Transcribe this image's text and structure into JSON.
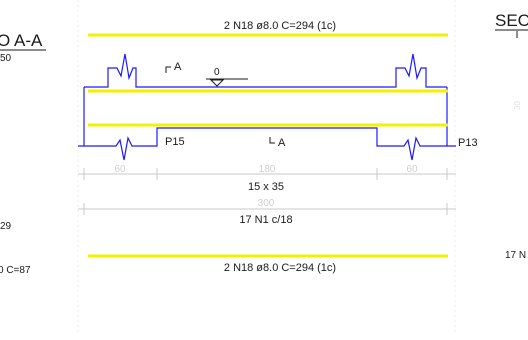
{
  "colors": {
    "rebar": "#f2f200",
    "outline": "#1a1aff",
    "dimension": "#c8c8c8",
    "text": "#1a1a1a",
    "faint_text": "#d0d0d0"
  },
  "drawing": {
    "top_bar_label": "2 N18 ø8.0 C=294 (1c)",
    "bottom_bar_label": "2 N18 ø8.0 C=294 (1c)",
    "section_mark_top": "A",
    "section_mark_bottom": "A",
    "level_mark": "0",
    "pillar_left": "P15",
    "pillar_right": "P13",
    "span_left": "60",
    "span_mid": "180",
    "span_right": "60",
    "section_size": "15 x 35",
    "total_length": "300",
    "stirrups_label": "17 N1 c/18"
  },
  "left_cut": {
    "title": "O A-A",
    "scale": "50",
    "val_a": "29",
    "val_b": "0 C=87"
  },
  "right_cut": {
    "title": "SEC",
    "val_a": "17 N",
    "faint_glyph": "30"
  }
}
